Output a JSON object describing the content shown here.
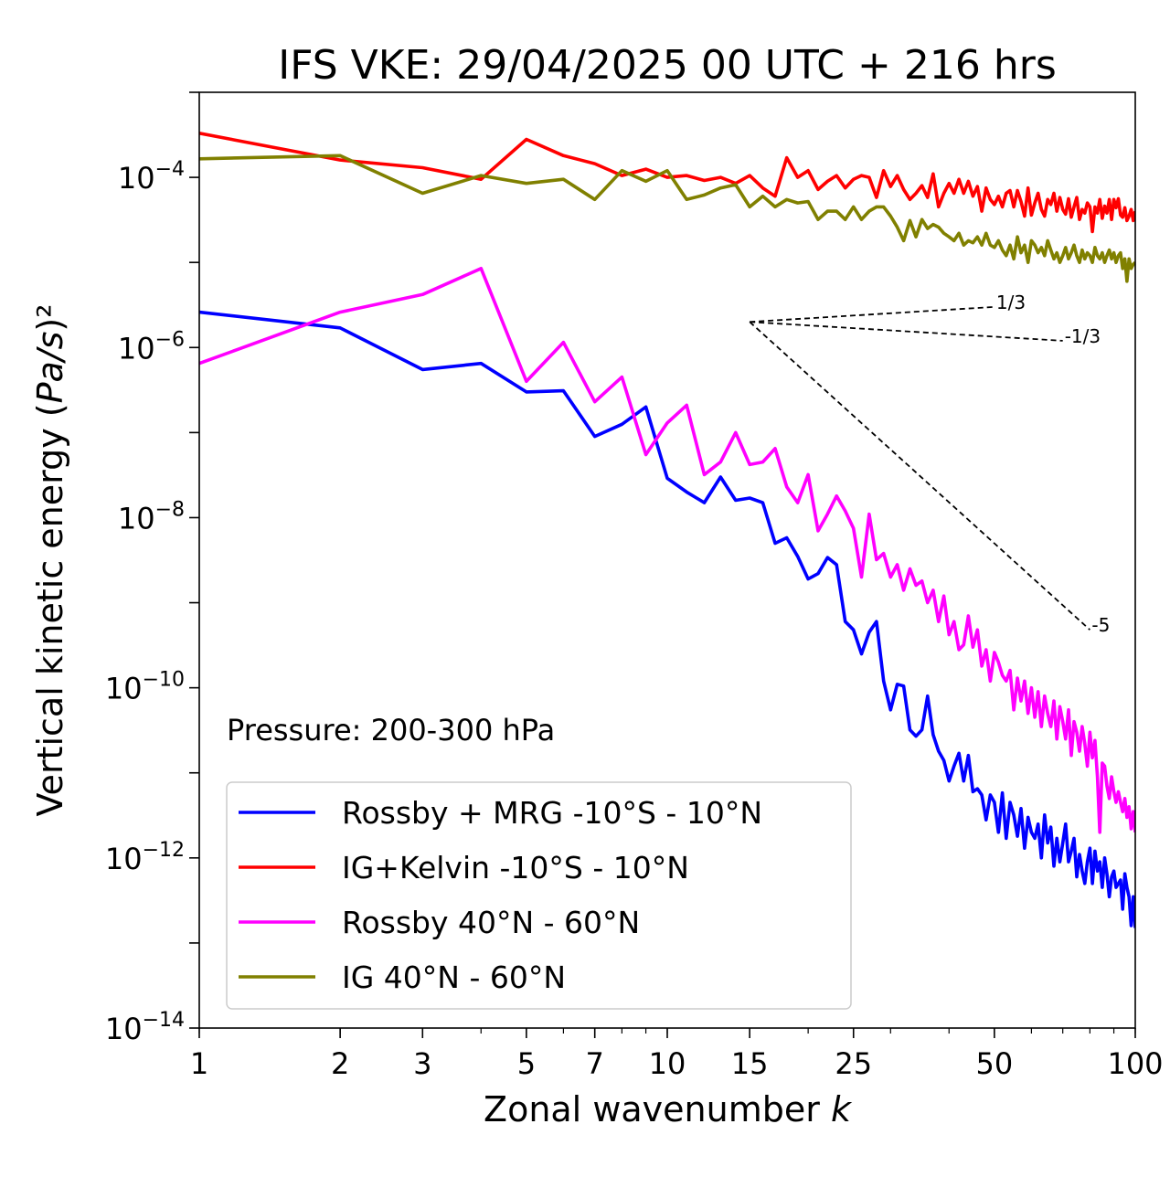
{
  "chart_data": {
    "type": "line",
    "title": "IFS VKE: 29/04/2025 00 UTC + 216 hrs",
    "xlabel": "Zonal wavenumber k",
    "ylabel": "Vertical kinetic energy (Pa/s)²",
    "xscale": "log",
    "yscale": "log",
    "xlim": [
      1,
      100
    ],
    "ylim": [
      1e-14,
      0.001
    ],
    "xticks": [
      1,
      2,
      3,
      5,
      7,
      10,
      15,
      25,
      50,
      100
    ],
    "xtick_labels": [
      "1",
      "2",
      "3",
      "5",
      "7",
      "10",
      "15",
      "25",
      "50",
      "100"
    ],
    "yticks": [
      {
        "value": 1e-14,
        "base": "10",
        "exp": "−14"
      },
      {
        "value": 1e-12,
        "base": "10",
        "exp": "−12"
      },
      {
        "value": 1e-10,
        "base": "10",
        "exp": "−10"
      },
      {
        "value": 1e-08,
        "base": "10",
        "exp": "−8"
      },
      {
        "value": 1e-06,
        "base": "10",
        "exp": "−6"
      },
      {
        "value": 0.0001,
        "base": "10",
        "exp": "−4"
      }
    ],
    "annotation": "Pressure: 200-300 hPa",
    "legend_position": "lower-left",
    "grid": false,
    "series": [
      {
        "name": "Rossby + MRG -10°S - 10°N",
        "color": "#0000ff",
        "x": [
          1,
          2,
          3,
          4,
          5,
          6,
          7,
          8,
          9,
          10,
          11,
          12,
          13,
          14,
          15,
          16,
          17,
          18,
          19,
          20,
          21,
          22,
          23,
          24,
          25,
          26,
          27,
          28,
          29,
          30,
          31,
          32,
          33,
          34,
          35,
          36,
          37,
          38,
          39,
          40,
          41,
          42,
          43,
          44,
          45,
          46,
          47,
          48,
          49,
          50,
          51,
          52,
          53,
          54,
          55,
          56,
          57,
          58,
          59,
          60,
          61,
          62,
          63,
          64,
          65,
          66,
          67,
          68,
          69,
          70,
          71,
          72,
          73,
          74,
          75,
          76,
          77,
          78,
          79,
          80,
          81,
          82,
          83,
          84,
          85,
          86,
          87,
          88,
          89,
          90,
          91,
          92,
          93,
          94,
          95,
          96,
          97,
          98,
          99,
          100
        ],
        "y": [
          2.6e-06,
          1.7e-06,
          5.5e-07,
          6.5e-07,
          3e-07,
          3.1e-07,
          9e-08,
          1.25e-07,
          2e-07,
          2.9e-08,
          2e-08,
          1.5e-08,
          3e-08,
          1.6e-08,
          1.7e-08,
          1.5e-08,
          5e-09,
          5.8e-09,
          3.5e-09,
          1.9e-09,
          2.2e-09,
          3.4e-09,
          2.8e-09,
          6e-10,
          4.8e-10,
          2.5e-10,
          4.5e-10,
          6e-10,
          1.2e-10,
          5.5e-11,
          1.1e-10,
          1.05e-10,
          3.2e-11,
          2.7e-11,
          3.2e-11,
          8e-11,
          2.8e-11,
          1.8e-11,
          1.4e-11,
          8e-12,
          1.2e-11,
          1.7e-11,
          8e-12,
          1.6e-11,
          6e-12,
          6.5e-12,
          5.5e-12,
          2.8e-12,
          5.5e-12,
          4.5e-12,
          2e-12,
          5.8e-12,
          1.7e-12,
          4.5e-12,
          3.2e-12,
          1.8e-12,
          3.8e-12,
          1.3e-12,
          3e-12,
          2e-12,
          1.7e-12,
          2.5e-12,
          1e-12,
          3.2e-12,
          1.5e-12,
          2.3e-12,
          8e-13,
          1.7e-12,
          9e-13,
          1.5e-12,
          2.5e-12,
          9e-13,
          1.2e-12,
          1.7e-12,
          6e-13,
          1.1e-12,
          7e-13,
          5e-13,
          9e-13,
          1.3e-12,
          5e-13,
          1.2e-12,
          7e-13,
          9e-13,
          4.5e-13,
          1e-12,
          6.5e-13,
          3.5e-13,
          6e-13,
          7e-13,
          4.5e-13,
          5e-13,
          5.5e-13,
          2.5e-13,
          6.5e-13,
          4.5e-13,
          3.5e-13,
          1.6e-13,
          3.5e-13,
          1.5e-13
        ]
      },
      {
        "name": "IG+Kelvin -10°S - 10°N",
        "color": "#ff0000",
        "x": [
          1,
          2,
          3,
          4,
          5,
          6,
          7,
          8,
          9,
          10,
          11,
          12,
          13,
          14,
          15,
          16,
          17,
          18,
          19,
          20,
          21,
          22,
          23,
          24,
          25,
          26,
          27,
          28,
          29,
          30,
          31,
          32,
          33,
          34,
          35,
          36,
          37,
          38,
          39,
          40,
          41,
          42,
          43,
          44,
          45,
          46,
          47,
          48,
          49,
          50,
          51,
          52,
          53,
          54,
          55,
          56,
          57,
          58,
          59,
          60,
          61,
          62,
          63,
          64,
          65,
          66,
          67,
          68,
          69,
          70,
          71,
          72,
          73,
          74,
          75,
          76,
          77,
          78,
          79,
          80,
          81,
          82,
          83,
          84,
          85,
          86,
          87,
          88,
          89,
          90,
          91,
          92,
          93,
          94,
          95,
          96,
          97,
          98,
          99,
          100
        ],
        "y": [
          0.00033,
          0.00016,
          0.00013,
          9.5e-05,
          0.00028,
          0.00018,
          0.000145,
          0.000105,
          0.000125,
          0.0001,
          0.000105,
          9.2e-05,
          0.0001,
          8.5e-05,
          0.000105,
          7.5e-05,
          6e-05,
          0.00017,
          0.0001,
          0.00012,
          7.2e-05,
          9e-05,
          0.000105,
          7.5e-05,
          9.5e-05,
          0.000105,
          0.0001,
          5.8e-05,
          0.00012,
          7.8e-05,
          0.000105,
          7.2e-05,
          5.5e-05,
          6.5e-05,
          8e-05,
          5.8e-05,
          0.00011,
          4.5e-05,
          6.5e-05,
          8.5e-05,
          6.5e-05,
          9.5e-05,
          6.5e-05,
          9e-05,
          6e-05,
          7.8e-05,
          4e-05,
          7.5e-05,
          5.5e-05,
          4.8e-05,
          6e-05,
          4.5e-05,
          6.5e-05,
          7e-05,
          4.5e-05,
          7e-05,
          5.2e-05,
          3.5e-05,
          7.5e-05,
          3.6e-05,
          5e-05,
          6.5e-05,
          4.2e-05,
          3.5e-05,
          5.5e-05,
          4.8e-05,
          6.5e-05,
          4e-05,
          5.8e-05,
          4.2e-05,
          3.7e-05,
          5.6e-05,
          3.4e-05,
          4.5e-05,
          5.8e-05,
          3.2e-05,
          4.2e-05,
          3.8e-05,
          5e-05,
          4.5e-05,
          2.3e-05,
          4.5e-05,
          3.8e-05,
          5.5e-05,
          3.3e-05,
          4.6e-05,
          3.8e-05,
          5.5e-05,
          3.2e-05,
          5.5e-05,
          4.4e-05,
          5.6e-05,
          3.6e-05,
          3.4e-05,
          4.4e-05,
          3.1e-05,
          3.5e-05,
          4.2e-05,
          3.1e-05,
          4e-05
        ]
      },
      {
        "name": "Rossby 40°N - 60°N",
        "color": "#ff00ff",
        "x": [
          1,
          2,
          3,
          4,
          5,
          6,
          7,
          8,
          9,
          10,
          11,
          12,
          13,
          14,
          15,
          16,
          17,
          18,
          19,
          20,
          21,
          22,
          23,
          24,
          25,
          26,
          27,
          28,
          29,
          30,
          31,
          32,
          33,
          34,
          35,
          36,
          37,
          38,
          39,
          40,
          41,
          42,
          43,
          44,
          45,
          46,
          47,
          48,
          49,
          50,
          51,
          52,
          53,
          54,
          55,
          56,
          57,
          58,
          59,
          60,
          61,
          62,
          63,
          64,
          65,
          66,
          67,
          68,
          69,
          70,
          71,
          72,
          73,
          74,
          75,
          76,
          77,
          78,
          79,
          80,
          81,
          82,
          83,
          84,
          85,
          86,
          87,
          88,
          89,
          90,
          91,
          92,
          93,
          94,
          95,
          96,
          97,
          98,
          99,
          100
        ],
        "y": [
          6.5e-07,
          2.6e-06,
          4.2e-06,
          8.5e-06,
          4e-07,
          1.15e-06,
          2.3e-07,
          4.5e-07,
          5.5e-08,
          1.3e-07,
          2.1e-07,
          3.2e-08,
          4.5e-08,
          1e-07,
          4.2e-08,
          4.5e-08,
          6.5e-08,
          2.3e-08,
          1.5e-08,
          3.2e-08,
          7e-09,
          1.1e-08,
          1.8e-08,
          1.2e-08,
          7.5e-09,
          2e-09,
          1.1e-08,
          3.2e-09,
          3.8e-09,
          2e-09,
          2.8e-09,
          1.4e-09,
          2.5e-09,
          1.6e-09,
          1.8e-09,
          1e-09,
          1.4e-09,
          6e-10,
          1.2e-09,
          4.2e-10,
          6e-10,
          2.8e-10,
          3.2e-10,
          7e-10,
          3e-10,
          4.8e-10,
          1.8e-10,
          2.8e-10,
          1.2e-10,
          2.6e-10,
          2e-10,
          1.4e-10,
          1.2e-10,
          1.6e-10,
          5.5e-11,
          1.3e-10,
          7e-11,
          1.2e-10,
          5e-11,
          1e-10,
          4.5e-11,
          9e-11,
          3.5e-11,
          8e-11,
          5e-11,
          3.5e-11,
          7e-11,
          2.5e-11,
          6e-11,
          4e-11,
          2.5e-11,
          5.5e-11,
          1.6e-11,
          4e-11,
          3e-11,
          1.8e-11,
          3.5e-11,
          2.2e-11,
          1.2e-11,
          3e-11,
          1.5e-11,
          2.4e-11,
          9e-12,
          2e-12,
          1.3e-11,
          1.2e-11,
          7e-12,
          5e-12,
          9e-12,
          6e-12,
          4.5e-12,
          6e-12,
          4.5e-12,
          3.5e-12,
          5e-12,
          3e-12,
          4e-12,
          2.2e-12,
          3.5e-12,
          2e-12
        ]
      },
      {
        "name": "IG 40°N - 60°N",
        "color": "#808000",
        "x": [
          1,
          2,
          3,
          4,
          5,
          6,
          7,
          8,
          9,
          10,
          11,
          12,
          13,
          14,
          15,
          16,
          17,
          18,
          19,
          20,
          21,
          22,
          23,
          24,
          25,
          26,
          27,
          28,
          29,
          30,
          31,
          32,
          33,
          34,
          35,
          36,
          37,
          38,
          39,
          40,
          41,
          42,
          43,
          44,
          45,
          46,
          47,
          48,
          49,
          50,
          51,
          52,
          53,
          54,
          55,
          56,
          57,
          58,
          59,
          60,
          61,
          62,
          63,
          64,
          65,
          66,
          67,
          68,
          69,
          70,
          71,
          72,
          73,
          74,
          75,
          76,
          77,
          78,
          79,
          80,
          81,
          82,
          83,
          84,
          85,
          86,
          87,
          88,
          89,
          90,
          91,
          92,
          93,
          94,
          95,
          96,
          97,
          98,
          99,
          100
        ],
        "y": [
          0.000165,
          0.00018,
          6.5e-05,
          0.000105,
          8.5e-05,
          9.5e-05,
          5.5e-05,
          0.00012,
          9e-05,
          0.00012,
          5.5e-05,
          6.2e-05,
          7.5e-05,
          8.2e-05,
          4.5e-05,
          6e-05,
          4.5e-05,
          5.5e-05,
          5e-05,
          5.2e-05,
          3.2e-05,
          4e-05,
          4e-05,
          3.2e-05,
          4.5e-05,
          3.2e-05,
          4e-05,
          4.5e-05,
          4.5e-05,
          3.5e-05,
          2.6e-05,
          1.8e-05,
          3.1e-05,
          2e-05,
          3.2e-05,
          2.5e-05,
          2.8e-05,
          2.6e-05,
          2.2e-05,
          2e-05,
          1.8e-05,
          2.2e-05,
          1.6e-05,
          1.8e-05,
          1.7e-05,
          2e-05,
          1.6e-05,
          2.2e-05,
          1.6e-05,
          1.5e-05,
          1.8e-05,
          1.4e-05,
          1.2e-05,
          1.6e-05,
          1.1e-05,
          2e-05,
          1.3e-05,
          1.6e-05,
          1e-05,
          1.8e-05,
          1.6e-05,
          1.3e-05,
          1.5e-05,
          1.2e-05,
          1.8e-05,
          1.4e-05,
          1.1e-05,
          1.3e-05,
          1e-05,
          1.2e-05,
          1.5e-05,
          1.1e-05,
          1.3e-05,
          1.6e-05,
          1.2e-05,
          1e-05,
          1.4e-05,
          1.1e-05,
          1.3e-05,
          1.2e-05,
          1e-05,
          1.5e-05,
          1.2e-05,
          1.1e-05,
          1.3e-05,
          1e-05,
          1.2e-05,
          1.4e-05,
          1.1e-05,
          1.3e-05,
          1e-05,
          1.2e-05,
          1.3e-05,
          8.5e-06,
          1.1e-05,
          6e-06,
          1.1e-05,
          8.5e-06,
          9.5e-06,
          1e-05
        ]
      }
    ],
    "reference_lines": [
      {
        "label": "1/3",
        "x": [
          15,
          50
        ],
        "y": [
          2e-06,
          3e-06
        ]
      },
      {
        "label": "-1/3",
        "x": [
          15,
          70
        ],
        "y": [
          2e-06,
          1.2e-06
        ]
      },
      {
        "label": "-5",
        "x": [
          15,
          80
        ],
        "y": [
          2e-06,
          4.8e-10
        ]
      }
    ]
  }
}
